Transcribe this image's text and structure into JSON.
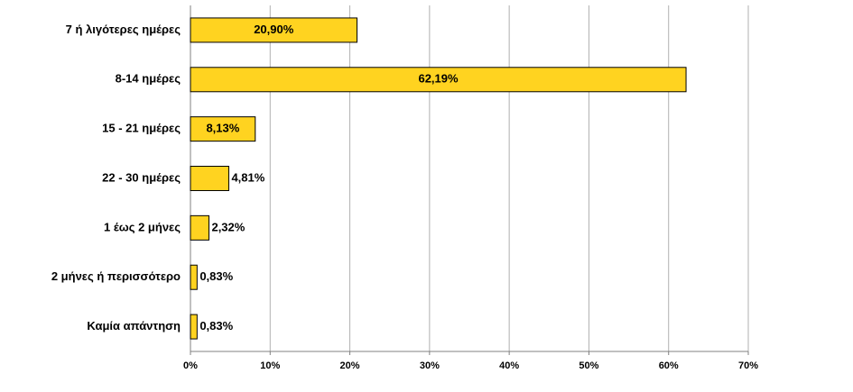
{
  "chart_data": {
    "type": "barh",
    "categories": [
      "7 ή λιγότερες ημέρες",
      "8-14 ημέρες",
      "15 - 21 ημέρες",
      "22 - 30 ημέρες",
      "1 έως 2 μήνες",
      "2 μήνες ή περισσότερο",
      "Καμία απάντηση"
    ],
    "values": [
      20.9,
      62.19,
      8.13,
      4.81,
      2.32,
      0.83,
      0.83
    ],
    "value_labels": [
      "20,90%",
      "62,19%",
      "8,13%",
      "4,81%",
      "2,32%",
      "0,83%",
      "0,83%"
    ],
    "color": "#ffd320",
    "xlim": [
      0,
      70
    ],
    "xticks": [
      {
        "value": 0,
        "label": "0%"
      },
      {
        "value": 10,
        "label": "10%"
      },
      {
        "value": 20,
        "label": "20%"
      },
      {
        "value": 30,
        "label": "30%"
      },
      {
        "value": 40,
        "label": "40%"
      },
      {
        "value": 50,
        "label": "50%"
      },
      {
        "value": 60,
        "label": "60%"
      },
      {
        "value": 70,
        "label": "70%"
      }
    ],
    "grid": true
  }
}
